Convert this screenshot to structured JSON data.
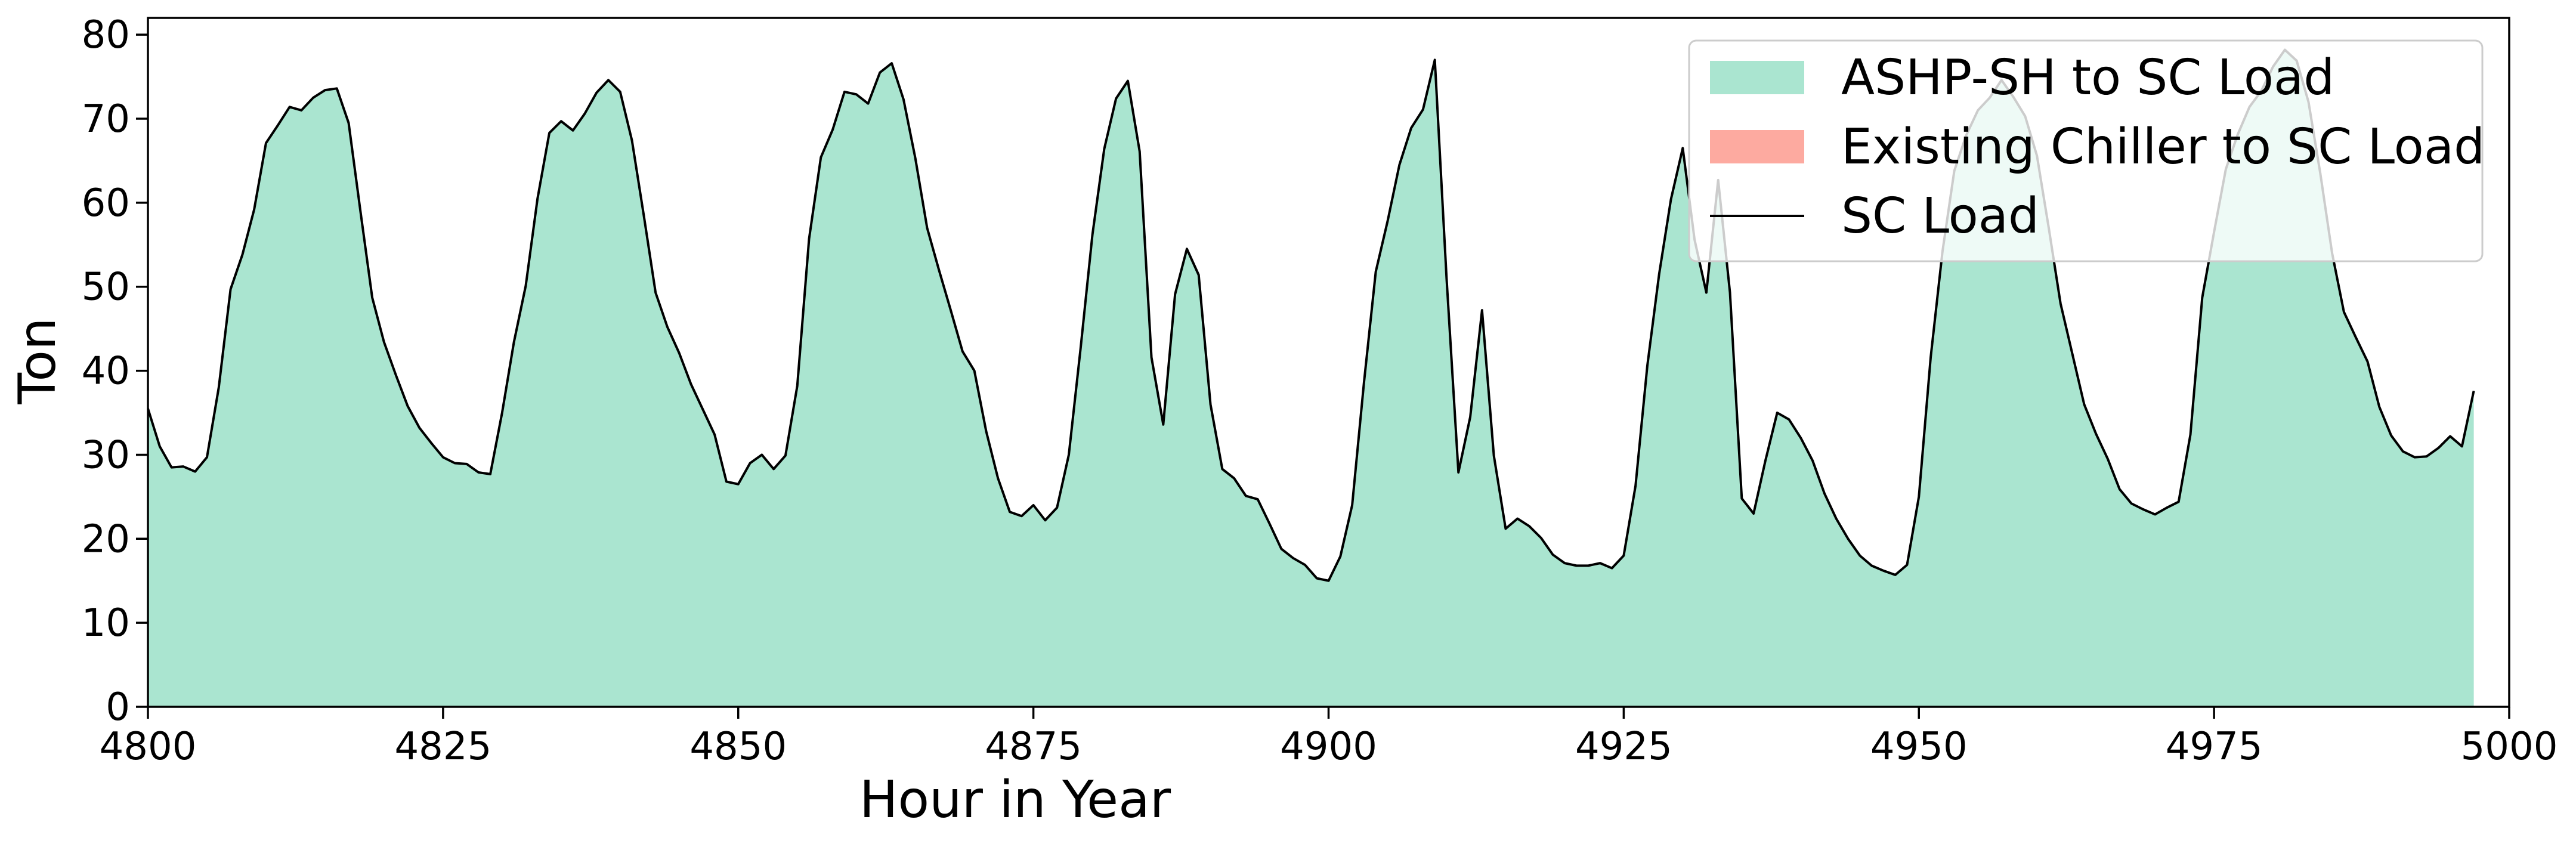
{
  "chart_data": {
    "type": "area",
    "xlabel": "Hour in Year",
    "ylabel": "Ton",
    "xlim": [
      4800,
      5000
    ],
    "ylim": [
      0,
      82
    ],
    "x_ticks": [
      4800,
      4825,
      4850,
      4875,
      4900,
      4925,
      4950,
      4975,
      5000
    ],
    "y_ticks": [
      0,
      10,
      20,
      30,
      40,
      50,
      60,
      70,
      80
    ],
    "grid": false,
    "legend_position": "top-right",
    "x_start": 4800,
    "x_step": 1,
    "series": [
      {
        "name": "ASHP-SH to SC Load",
        "kind": "area",
        "color": "#aae5d0",
        "values_ref": "SC Load"
      },
      {
        "name": "Existing Chiller to SC Load",
        "kind": "area",
        "color": "#fdaaa0",
        "values": []
      },
      {
        "name": "SC Load",
        "kind": "line",
        "color": "#000000",
        "values": [
          35.5,
          31.0,
          28.5,
          28.6,
          28.0,
          29.7,
          38.0,
          49.7,
          53.8,
          59.2,
          67.1,
          69.2,
          71.4,
          71.0,
          72.5,
          73.4,
          73.6,
          69.5,
          59.0,
          48.7,
          43.4,
          39.5,
          35.8,
          33.2,
          31.4,
          29.7,
          29.0,
          28.9,
          27.9,
          27.7,
          35.0,
          43.4,
          50.1,
          60.5,
          68.3,
          69.7,
          68.6,
          70.6,
          73.1,
          74.6,
          73.2,
          67.4,
          58.5,
          49.3,
          45.2,
          42.1,
          38.4,
          35.4,
          32.4,
          26.8,
          26.5,
          29.0,
          30.0,
          28.3,
          29.9,
          38.2,
          55.7,
          65.4,
          68.7,
          73.2,
          72.9,
          71.8,
          75.5,
          76.6,
          72.3,
          65.3,
          57.0,
          52.0,
          47.2,
          42.3,
          40.0,
          32.8,
          27.2,
          23.2,
          22.7,
          24.0,
          22.2,
          23.7,
          30.0,
          42.7,
          56.2,
          66.4,
          72.4,
          74.5,
          66.1,
          41.6,
          33.6,
          49.1,
          54.5,
          51.4,
          36.0,
          28.3,
          27.2,
          25.1,
          24.7,
          21.8,
          18.8,
          17.7,
          16.9,
          15.3,
          15.0,
          17.9,
          24.0,
          38.6,
          51.8,
          57.8,
          64.5,
          68.9,
          71.1,
          77.0,
          50.9,
          27.9,
          34.5,
          47.2,
          29.9,
          21.2,
          22.4,
          21.5,
          20.1,
          18.1,
          17.1,
          16.8,
          16.8,
          17.1,
          16.5,
          18.0,
          26.3,
          40.6,
          51.5,
          60.4,
          66.5,
          55.6,
          49.3,
          62.7,
          49.3,
          24.8,
          23.0,
          29.3,
          35.0,
          34.2,
          32.0,
          29.3,
          25.4,
          22.4,
          20.0,
          18.0,
          16.8,
          16.2,
          15.7,
          16.9,
          25.0,
          41.6,
          54.2,
          63.8,
          68.0,
          71.0,
          72.5,
          74.6,
          72.6,
          70.3,
          65.6,
          57.0,
          48.0,
          42.0,
          36.0,
          32.5,
          29.5,
          25.9,
          24.2,
          23.5,
          22.9,
          23.7,
          24.4,
          32.4,
          48.7,
          56.5,
          64.0,
          68.1,
          71.4,
          73.3,
          76.2,
          78.2,
          76.9,
          72.0,
          63.5,
          54.0,
          47.0,
          44.0,
          41.1,
          35.7,
          32.3,
          30.4,
          29.7,
          29.8,
          30.8,
          32.2,
          31.0,
          37.6
        ]
      }
    ]
  }
}
